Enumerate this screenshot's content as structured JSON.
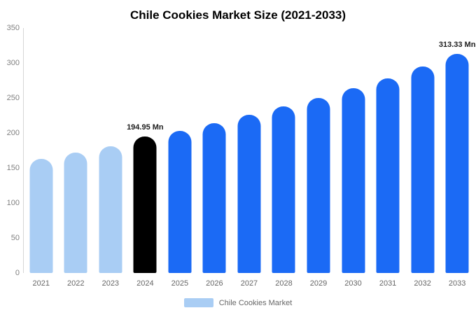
{
  "title": "Chile Cookies Market Size (2021-2033)",
  "legend": {
    "label": "Chile Cookies Market",
    "swatch_color": "#a9cdf4"
  },
  "colors": {
    "historical_bar": "#a9cdf4",
    "current_bar": "#000000",
    "forecast_bar": "#1b6af5"
  },
  "y_axis": {
    "ticks": [
      0,
      50,
      100,
      150,
      200,
      250,
      300,
      350
    ]
  },
  "chart_data": {
    "type": "bar",
    "title": "Chile Cookies Market Size (2021-2033)",
    "categories": [
      "2021",
      "2022",
      "2023",
      "2024",
      "2025",
      "2026",
      "2027",
      "2028",
      "2029",
      "2030",
      "2031",
      "2032",
      "2033"
    ],
    "values": [
      163,
      172,
      181,
      194.95,
      203,
      214,
      226,
      238,
      250,
      264,
      278,
      295,
      313.33
    ],
    "unit": "Mn",
    "xlabel": "",
    "ylabel": "",
    "ylim": [
      0,
      350
    ],
    "grid": false,
    "legend_position": "bottom",
    "legend": [
      "Chile Cookies Market"
    ],
    "annotations": [
      {
        "category": "2024",
        "text": "194.95 Mn"
      },
      {
        "category": "2033",
        "text": "313.33 Mn"
      }
    ],
    "bar_colors": [
      "#a9cdf4",
      "#a9cdf4",
      "#a9cdf4",
      "#000000",
      "#1b6af5",
      "#1b6af5",
      "#1b6af5",
      "#1b6af5",
      "#1b6af5",
      "#1b6af5",
      "#1b6af5",
      "#1b6af5",
      "#1b6af5"
    ]
  }
}
